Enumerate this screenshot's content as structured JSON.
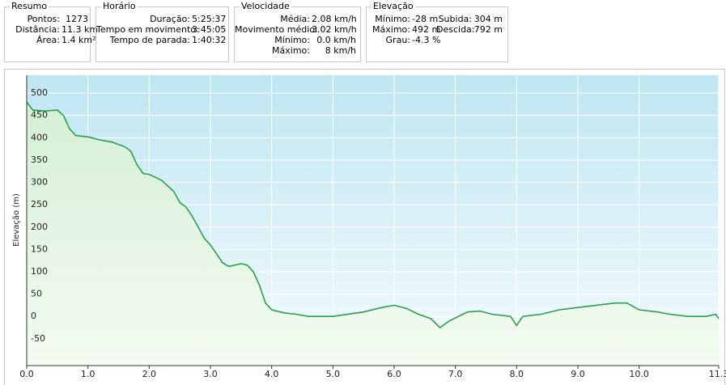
{
  "panels": [
    {
      "title": "Resumo",
      "rows": [
        [
          "Pontos:",
          "1273"
        ],
        [
          "Distância:",
          "11.3 km"
        ],
        [
          "Área:",
          "1.4 km²"
        ]
      ]
    },
    {
      "title": "Horário",
      "rows": [
        [
          "Duração:",
          "5:25:37"
        ],
        [
          "Tempo em movimento:",
          "3:45:05"
        ],
        [
          "Tempo de parada:",
          "1:40:32"
        ]
      ]
    },
    {
      "title": "Velocidade",
      "rows": [
        [
          "Média:",
          "2.08 km/h"
        ],
        [
          "Movimento médio:",
          "3.02 km/h"
        ],
        [
          "Mínimo:",
          "0.0 km/h"
        ],
        [
          "Máximo:",
          "8 km/h"
        ]
      ]
    },
    {
      "title": "Elevação",
      "rows": [
        [
          "Mínimo:",
          "-28 m",
          "Subida:",
          "304 m"
        ],
        [
          "Máximo:",
          "492 m",
          "Descida:",
          "792 m"
        ],
        [
          "Grau:",
          "-4.3 %"
        ]
      ]
    }
  ],
  "chart_data": {
    "type": "line",
    "y_label": "Elevação (m)",
    "x": [
      0,
      0.1,
      0.3,
      0.5,
      0.6,
      0.7,
      0.8,
      1.0,
      1.2,
      1.4,
      1.5,
      1.6,
      1.7,
      1.8,
      1.9,
      2.0,
      2.2,
      2.4,
      2.5,
      2.6,
      2.7,
      2.8,
      2.9,
      3.0,
      3.1,
      3.2,
      3.3,
      3.5,
      3.6,
      3.7,
      3.8,
      3.9,
      4.0,
      4.2,
      4.4,
      4.6,
      5.0,
      5.5,
      5.8,
      6.0,
      6.2,
      6.4,
      6.6,
      6.75,
      6.9,
      7.2,
      7.4,
      7.6,
      7.9,
      8.0,
      8.1,
      8.4,
      8.7,
      9.0,
      9.3,
      9.6,
      9.8,
      10.0,
      10.3,
      10.5,
      10.8,
      11.1,
      11.25,
      11.3
    ],
    "series": [
      {
        "name": "Elevação",
        "color": "#2e9e4c",
        "values": [
          480,
          462,
          460,
          462,
          450,
          420,
          405,
          402,
          395,
          390,
          385,
          380,
          370,
          340,
          320,
          318,
          305,
          280,
          255,
          245,
          225,
          200,
          175,
          160,
          140,
          120,
          112,
          118,
          115,
          100,
          70,
          30,
          15,
          8,
          5,
          0,
          0,
          10,
          20,
          25,
          18,
          5,
          -5,
          -25,
          -10,
          10,
          12,
          5,
          0,
          -20,
          0,
          5,
          15,
          20,
          25,
          30,
          30,
          15,
          10,
          5,
          0,
          0,
          5,
          -5
        ]
      }
    ],
    "xlim": [
      0,
      11.3
    ],
    "xticks": [
      {
        "value": 0,
        "label": "0.0"
      },
      {
        "value": 1,
        "label": "1.0"
      },
      {
        "value": 2,
        "label": "2.0"
      },
      {
        "value": 3,
        "label": "3.0"
      },
      {
        "value": 4,
        "label": "4.0"
      },
      {
        "value": 5,
        "label": "5.0"
      },
      {
        "value": 6,
        "label": "6.0"
      },
      {
        "value": 7,
        "label": "7.0"
      },
      {
        "value": 8,
        "label": "8.0"
      },
      {
        "value": 9,
        "label": "9.0"
      },
      {
        "value": 10,
        "label": "10.0"
      },
      11.3
    ],
    "ylim": [
      -110,
      540
    ],
    "yticks": [
      -50,
      0,
      50,
      100,
      150,
      200,
      250,
      300,
      350,
      400,
      450,
      500
    ],
    "grid": true
  }
}
